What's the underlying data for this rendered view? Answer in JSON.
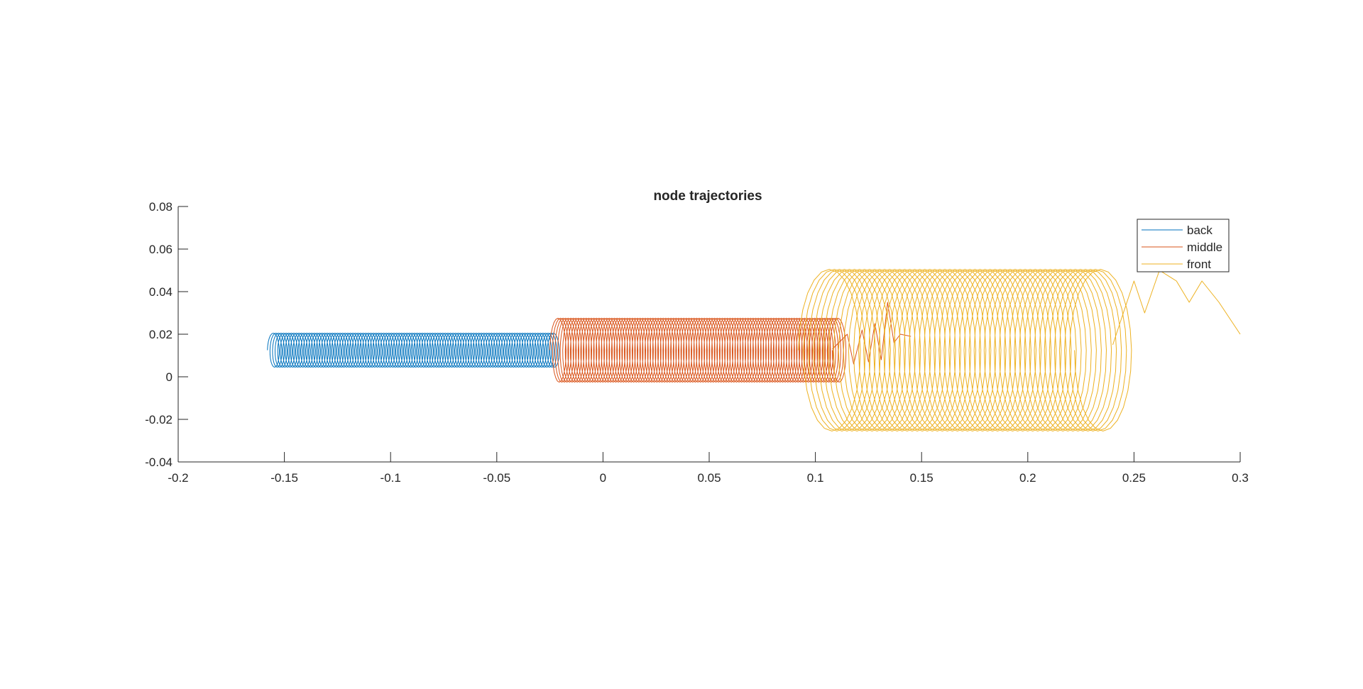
{
  "chart_data": {
    "type": "line",
    "title": "node trajectories",
    "xlabel": "",
    "ylabel": "",
    "xlim": [
      -0.2,
      0.3
    ],
    "ylim": [
      -0.04,
      0.08
    ],
    "xticks": [
      -0.2,
      -0.15,
      -0.1,
      -0.05,
      0,
      0.05,
      0.1,
      0.15,
      0.2,
      0.25,
      0.3
    ],
    "xtick_labels": [
      "-0.2",
      "-0.15",
      "-0.1",
      "-0.05",
      "0",
      "0.05",
      "0.1",
      "0.15",
      "0.2",
      "0.25",
      "0.3"
    ],
    "yticks": [
      -0.04,
      -0.02,
      0,
      0.02,
      0.04,
      0.06,
      0.08
    ],
    "ytick_labels": [
      "-0.04",
      "-0.02",
      "0",
      "0.02",
      "0.04",
      "0.06",
      "0.08"
    ],
    "grid": false,
    "legend_position": "top-right",
    "series": [
      {
        "name": "back",
        "color": "#0072BD",
        "x_start": -0.158,
        "x_end": -0.025,
        "y_center": 0.0125,
        "y_amplitude": 0.008,
        "loops": 110,
        "x_radius": 0.0025
      },
      {
        "name": "middle",
        "color": "#D95319",
        "x_start": -0.025,
        "x_end": 0.108,
        "y_center": 0.0125,
        "y_amplitude": 0.015,
        "loops": 110,
        "x_radius": 0.0035,
        "tail": [
          [
            0.108,
            0.013
          ],
          [
            0.115,
            0.02
          ],
          [
            0.118,
            0.006
          ],
          [
            0.122,
            0.022
          ],
          [
            0.125,
            0.007
          ],
          [
            0.128,
            0.025
          ],
          [
            0.131,
            0.008
          ],
          [
            0.134,
            0.035
          ],
          [
            0.137,
            0.016
          ],
          [
            0.14,
            0.02
          ],
          [
            0.145,
            0.019
          ]
        ]
      },
      {
        "name": "front",
        "color": "#EDB120",
        "x_start": 0.092,
        "x_end": 0.222,
        "y_center": 0.0125,
        "y_amplitude": 0.038,
        "loops": 55,
        "x_radius": 0.014,
        "tail": [
          [
            0.24,
            0.015
          ],
          [
            0.245,
            0.03
          ],
          [
            0.25,
            0.045
          ],
          [
            0.255,
            0.03
          ],
          [
            0.262,
            0.05
          ],
          [
            0.27,
            0.045
          ],
          [
            0.276,
            0.035
          ],
          [
            0.282,
            0.045
          ],
          [
            0.29,
            0.035
          ],
          [
            0.3,
            0.02
          ]
        ]
      }
    ]
  }
}
